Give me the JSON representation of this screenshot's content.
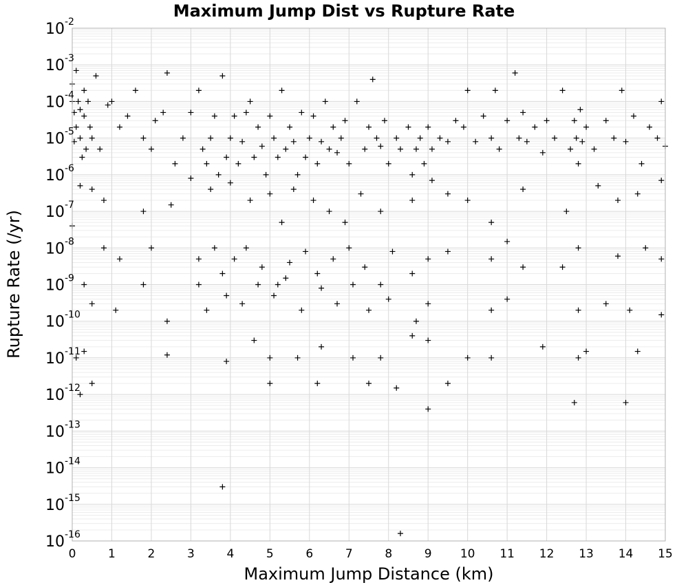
{
  "chart_data": {
    "type": "scatter",
    "title": "Maximum Jump Dist vs Rupture Rate",
    "xlabel": "Maximum Jump Distance (km)",
    "ylabel": "Rupture Rate (/yr)",
    "xlim": [
      0,
      15
    ],
    "ylim": [
      1e-16,
      0.01
    ],
    "y_scale": "log",
    "grid": true,
    "marker": "+",
    "x_ticks": [
      "0",
      "1",
      "2",
      "3",
      "4",
      "5",
      "6",
      "7",
      "8",
      "9",
      "10",
      "11",
      "12",
      "13",
      "14",
      "15"
    ],
    "y_ticks": [
      {
        "base": "10",
        "exp": "-2"
      },
      {
        "base": "10",
        "exp": "-3"
      },
      {
        "base": "10",
        "exp": "-4"
      },
      {
        "base": "10",
        "exp": "-5"
      },
      {
        "base": "10",
        "exp": "-6"
      },
      {
        "base": "10",
        "exp": "-7"
      },
      {
        "base": "10",
        "exp": "-8"
      },
      {
        "base": "10",
        "exp": "-9"
      },
      {
        "base": "10",
        "exp": "-10"
      },
      {
        "base": "10",
        "exp": "-11"
      },
      {
        "base": "10",
        "exp": "-12"
      },
      {
        "base": "10",
        "exp": "-13"
      },
      {
        "base": "10",
        "exp": "-14"
      },
      {
        "base": "10",
        "exp": "-15"
      },
      {
        "base": "10",
        "exp": "-16"
      }
    ],
    "series": [
      {
        "points": [
          [
            0.0,
            0.0001
          ],
          [
            0.05,
            5e-05
          ],
          [
            0.1,
            2e-05
          ],
          [
            0.15,
            0.0001
          ],
          [
            0.2,
            1e-05
          ],
          [
            0.25,
            3e-06
          ],
          [
            0.3,
            0.0002
          ],
          [
            0.35,
            5e-06
          ],
          [
            0.4,
            0.0001
          ],
          [
            0.45,
            2e-05
          ],
          [
            0.0,
            0.0003
          ],
          [
            0.1,
            0.0007
          ],
          [
            0.2,
            6e-05
          ],
          [
            0.3,
            4e-05
          ],
          [
            0.05,
            8e-06
          ],
          [
            0.5,
            1e-05
          ],
          [
            0.6,
            0.0005
          ],
          [
            0.7,
            5e-06
          ],
          [
            0.9,
            8e-05
          ],
          [
            1.0,
            0.0001
          ],
          [
            1.2,
            2e-05
          ],
          [
            1.4,
            4e-05
          ],
          [
            1.6,
            0.0002
          ],
          [
            1.8,
            1e-05
          ],
          [
            2.0,
            5e-06
          ],
          [
            2.1,
            3e-05
          ],
          [
            2.3,
            5e-05
          ],
          [
            2.4,
            0.0006
          ],
          [
            2.6,
            2e-06
          ],
          [
            2.8,
            1e-05
          ],
          [
            3.0,
            5e-05
          ],
          [
            3.2,
            0.0002
          ],
          [
            3.3,
            5e-06
          ],
          [
            3.4,
            2e-06
          ],
          [
            3.5,
            1e-05
          ],
          [
            3.6,
            4e-05
          ],
          [
            3.7,
            1e-06
          ],
          [
            3.8,
            0.0005
          ],
          [
            3.9,
            3e-06
          ],
          [
            4.0,
            1e-05
          ],
          [
            4.1,
            4e-05
          ],
          [
            4.2,
            2e-06
          ],
          [
            4.3,
            8e-06
          ],
          [
            4.4,
            5e-05
          ],
          [
            4.5,
            0.0001
          ],
          [
            4.6,
            3e-06
          ],
          [
            4.7,
            2e-05
          ],
          [
            4.8,
            6e-06
          ],
          [
            4.9,
            1e-06
          ],
          [
            5.0,
            4e-05
          ],
          [
            5.1,
            1e-05
          ],
          [
            5.2,
            3e-06
          ],
          [
            5.3,
            0.0002
          ],
          [
            5.4,
            5e-06
          ],
          [
            5.5,
            2e-05
          ],
          [
            5.6,
            8e-06
          ],
          [
            5.7,
            1e-06
          ],
          [
            5.8,
            5e-05
          ],
          [
            5.9,
            3e-06
          ],
          [
            6.0,
            1e-05
          ],
          [
            6.1,
            4e-05
          ],
          [
            6.2,
            2e-06
          ],
          [
            6.3,
            8e-06
          ],
          [
            6.4,
            0.0001
          ],
          [
            6.5,
            5e-06
          ],
          [
            6.6,
            2e-05
          ],
          [
            6.7,
            4e-06
          ],
          [
            6.8,
            1e-05
          ],
          [
            6.9,
            3e-05
          ],
          [
            7.0,
            2e-06
          ],
          [
            7.2,
            0.0001
          ],
          [
            7.4,
            5e-06
          ],
          [
            7.5,
            2e-05
          ],
          [
            7.6,
            0.0004
          ],
          [
            7.7,
            1e-05
          ],
          [
            7.8,
            6e-06
          ],
          [
            7.9,
            3e-05
          ],
          [
            8.0,
            2e-06
          ],
          [
            8.2,
            1e-05
          ],
          [
            8.3,
            5e-06
          ],
          [
            8.5,
            2e-05
          ],
          [
            8.6,
            1e-06
          ],
          [
            8.7,
            5e-06
          ],
          [
            8.8,
            1e-05
          ],
          [
            8.9,
            2e-06
          ],
          [
            9.0,
            2e-05
          ],
          [
            9.1,
            5e-06
          ],
          [
            9.3,
            1e-05
          ],
          [
            9.5,
            8e-06
          ],
          [
            9.7,
            3e-05
          ],
          [
            9.9,
            2e-05
          ],
          [
            10.0,
            0.0002
          ],
          [
            10.2,
            8e-06
          ],
          [
            10.4,
            4e-05
          ],
          [
            10.6,
            1e-05
          ],
          [
            10.7,
            0.0002
          ],
          [
            10.8,
            5e-06
          ],
          [
            11.0,
            3e-05
          ],
          [
            11.2,
            0.0006
          ],
          [
            11.3,
            1e-05
          ],
          [
            11.4,
            5e-05
          ],
          [
            11.5,
            8e-06
          ],
          [
            11.7,
            2e-05
          ],
          [
            11.9,
            4e-06
          ],
          [
            12.0,
            3e-05
          ],
          [
            12.2,
            1e-05
          ],
          [
            12.4,
            0.0002
          ],
          [
            12.6,
            5e-06
          ],
          [
            12.7,
            3e-05
          ],
          [
            12.75,
            1e-05
          ],
          [
            12.8,
            2e-06
          ],
          [
            12.85,
            6e-05
          ],
          [
            12.9,
            8e-06
          ],
          [
            13.0,
            2e-05
          ],
          [
            13.2,
            5e-06
          ],
          [
            13.5,
            3e-05
          ],
          [
            13.7,
            1e-05
          ],
          [
            13.9,
            0.0002
          ],
          [
            14.0,
            8e-06
          ],
          [
            14.2,
            4e-05
          ],
          [
            14.4,
            2e-06
          ],
          [
            14.6,
            2e-05
          ],
          [
            14.8,
            1e-05
          ],
          [
            14.9,
            0.0001
          ],
          [
            15.0,
            6e-06
          ],
          [
            0.2,
            5e-07
          ],
          [
            0.5,
            4e-07
          ],
          [
            0.8,
            2e-07
          ],
          [
            1.8,
            1e-07
          ],
          [
            2.5,
            1.5e-07
          ],
          [
            3.0,
            8e-07
          ],
          [
            3.5,
            4e-07
          ],
          [
            4.0,
            6e-07
          ],
          [
            4.5,
            2e-07
          ],
          [
            5.0,
            3e-07
          ],
          [
            5.3,
            5e-08
          ],
          [
            5.6,
            4e-07
          ],
          [
            6.1,
            2e-07
          ],
          [
            6.5,
            1e-07
          ],
          [
            6.9,
            5e-08
          ],
          [
            7.3,
            3e-07
          ],
          [
            7.8,
            1e-07
          ],
          [
            8.6,
            2e-07
          ],
          [
            9.1,
            7e-07
          ],
          [
            9.5,
            3e-07
          ],
          [
            10.0,
            2e-07
          ],
          [
            10.6,
            5e-08
          ],
          [
            11.4,
            4e-07
          ],
          [
            12.5,
            1e-07
          ],
          [
            13.3,
            5e-07
          ],
          [
            13.8,
            2e-07
          ],
          [
            14.3,
            3e-07
          ],
          [
            14.9,
            7e-07
          ],
          [
            0.0,
            4e-08
          ],
          [
            0.8,
            1e-08
          ],
          [
            1.2,
            5e-09
          ],
          [
            2.0,
            1e-08
          ],
          [
            3.2,
            5e-09
          ],
          [
            3.6,
            1e-08
          ],
          [
            3.8,
            2e-09
          ],
          [
            4.1,
            5e-09
          ],
          [
            4.4,
            1e-08
          ],
          [
            4.8,
            3e-09
          ],
          [
            5.2,
            1e-09
          ],
          [
            5.5,
            4e-09
          ],
          [
            5.9,
            8e-09
          ],
          [
            6.2,
            2e-09
          ],
          [
            6.6,
            5e-09
          ],
          [
            7.0,
            1e-08
          ],
          [
            7.4,
            3e-09
          ],
          [
            7.8,
            1e-09
          ],
          [
            8.1,
            8e-09
          ],
          [
            8.6,
            2e-09
          ],
          [
            9.0,
            5e-09
          ],
          [
            9.5,
            8e-09
          ],
          [
            10.6,
            5e-09
          ],
          [
            11.0,
            1.5e-08
          ],
          [
            11.4,
            3e-09
          ],
          [
            12.4,
            3e-09
          ],
          [
            12.8,
            1e-08
          ],
          [
            13.8,
            6e-09
          ],
          [
            14.5,
            1e-08
          ],
          [
            14.9,
            5e-09
          ],
          [
            0.3,
            1e-09
          ],
          [
            0.5,
            3e-10
          ],
          [
            1.1,
            2e-10
          ],
          [
            1.8,
            1e-09
          ],
          [
            2.4,
            1e-10
          ],
          [
            3.2,
            1e-09
          ],
          [
            3.4,
            2e-10
          ],
          [
            3.9,
            5e-10
          ],
          [
            4.3,
            3e-10
          ],
          [
            4.7,
            1e-09
          ],
          [
            5.1,
            5e-10
          ],
          [
            5.4,
            1.5e-09
          ],
          [
            5.8,
            2e-10
          ],
          [
            6.3,
            8e-10
          ],
          [
            6.7,
            3e-10
          ],
          [
            7.1,
            1e-09
          ],
          [
            7.5,
            2e-10
          ],
          [
            8.0,
            4e-10
          ],
          [
            8.7,
            1e-10
          ],
          [
            9.0,
            3e-10
          ],
          [
            10.6,
            2e-10
          ],
          [
            11.0,
            4e-10
          ],
          [
            12.8,
            2e-10
          ],
          [
            13.5,
            3e-10
          ],
          [
            14.1,
            2e-10
          ],
          [
            14.9,
            1.5e-10
          ],
          [
            0.1,
            1e-11
          ],
          [
            0.3,
            1.5e-11
          ],
          [
            2.4,
            1.2e-11
          ],
          [
            3.9,
            8e-12
          ],
          [
            4.6,
            3e-11
          ],
          [
            5.0,
            1e-11
          ],
          [
            5.7,
            1e-11
          ],
          [
            6.3,
            2e-11
          ],
          [
            7.1,
            1e-11
          ],
          [
            7.8,
            1e-11
          ],
          [
            8.6,
            4e-11
          ],
          [
            9.0,
            3e-11
          ],
          [
            10.0,
            1e-11
          ],
          [
            10.6,
            1e-11
          ],
          [
            11.9,
            2e-11
          ],
          [
            12.8,
            1e-11
          ],
          [
            13.0,
            1.5e-11
          ],
          [
            14.3,
            1.5e-11
          ],
          [
            0.2,
            1e-12
          ],
          [
            0.5,
            2e-12
          ],
          [
            5.0,
            2e-12
          ],
          [
            6.2,
            2e-12
          ],
          [
            7.5,
            2e-12
          ],
          [
            8.2,
            1.5e-12
          ],
          [
            9.0,
            4e-13
          ],
          [
            9.5,
            2e-12
          ],
          [
            12.7,
            6e-13
          ],
          [
            14.0,
            6e-13
          ],
          [
            3.8,
            3e-15
          ],
          [
            8.3,
            1.6e-16
          ]
        ]
      }
    ]
  }
}
